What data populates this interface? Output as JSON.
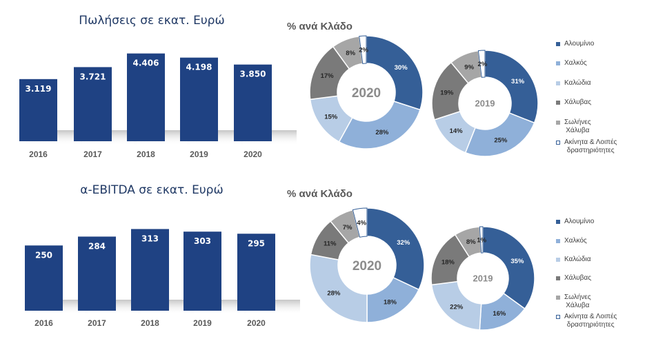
{
  "colors": {
    "bar": "#1f4283",
    "segments": [
      "#355f97",
      "#8fb0d9",
      "#b8cde6",
      "#7a7a7a",
      "#a6a6a6",
      "#ffffff"
    ],
    "title": "#1f3864"
  },
  "chart_data": [
    {
      "type": "bar",
      "title": "Πωλήσεις σε εκατ. Ευρώ",
      "categories": [
        "2016",
        "2017",
        "2018",
        "2019",
        "2020"
      ],
      "values": [
        3119,
        3721,
        4406,
        4198,
        3850
      ],
      "value_labels": [
        "3.119",
        "3.721",
        "4.406",
        "4.198",
        "3.850"
      ],
      "ylim": [
        0,
        4600
      ]
    },
    {
      "type": "bar",
      "title": "α-EBITDA σε εκατ. Ευρώ",
      "categories": [
        "2016",
        "2017",
        "2018",
        "2019",
        "2020"
      ],
      "values": [
        250,
        284,
        313,
        303,
        295
      ],
      "value_labels": [
        "250",
        "284",
        "313",
        "303",
        "295"
      ],
      "ylim": [
        0,
        330
      ]
    },
    {
      "type": "pie",
      "title": "% ανά Κλάδο",
      "legend": [
        "Αλουμίνιο",
        "Χαλκός",
        "Καλώδια",
        "Χάλυβας",
        "Σωλήνες\nΧάλυβα",
        "Ακίνητα & Λοιπές\nδραστηριότητες"
      ],
      "donuts": [
        {
          "center_label": "2020",
          "values": [
            30,
            28,
            15,
            17,
            8,
            2
          ],
          "labels": [
            "30%",
            "28%",
            "15%",
            "17%",
            "8%",
            "2%"
          ]
        },
        {
          "center_label": "2019",
          "values": [
            31,
            25,
            14,
            19,
            9,
            2
          ],
          "labels": [
            "31%",
            "25%",
            "14%",
            "19%",
            "9%",
            "2%"
          ]
        }
      ]
    },
    {
      "type": "pie",
      "title": "% ανά Κλάδο",
      "legend": [
        "Αλουμίνιο",
        "Χαλκός",
        "Καλώδια",
        "Χάλυβας",
        "Σωλήνες\nΧάλυβα",
        "Ακίνητα & Λοιπές\nδραστηριότητες"
      ],
      "donuts": [
        {
          "center_label": "2020",
          "values": [
            32,
            18,
            28,
            11,
            7,
            4
          ],
          "labels": [
            "32%",
            "18%",
            "28%",
            "11%",
            "7%",
            "4%"
          ]
        },
        {
          "center_label": "2019",
          "values": [
            35,
            16,
            22,
            18,
            8,
            1
          ],
          "labels": [
            "35%",
            "16%",
            "22%",
            "18%",
            "8%",
            "1%"
          ]
        }
      ]
    }
  ]
}
